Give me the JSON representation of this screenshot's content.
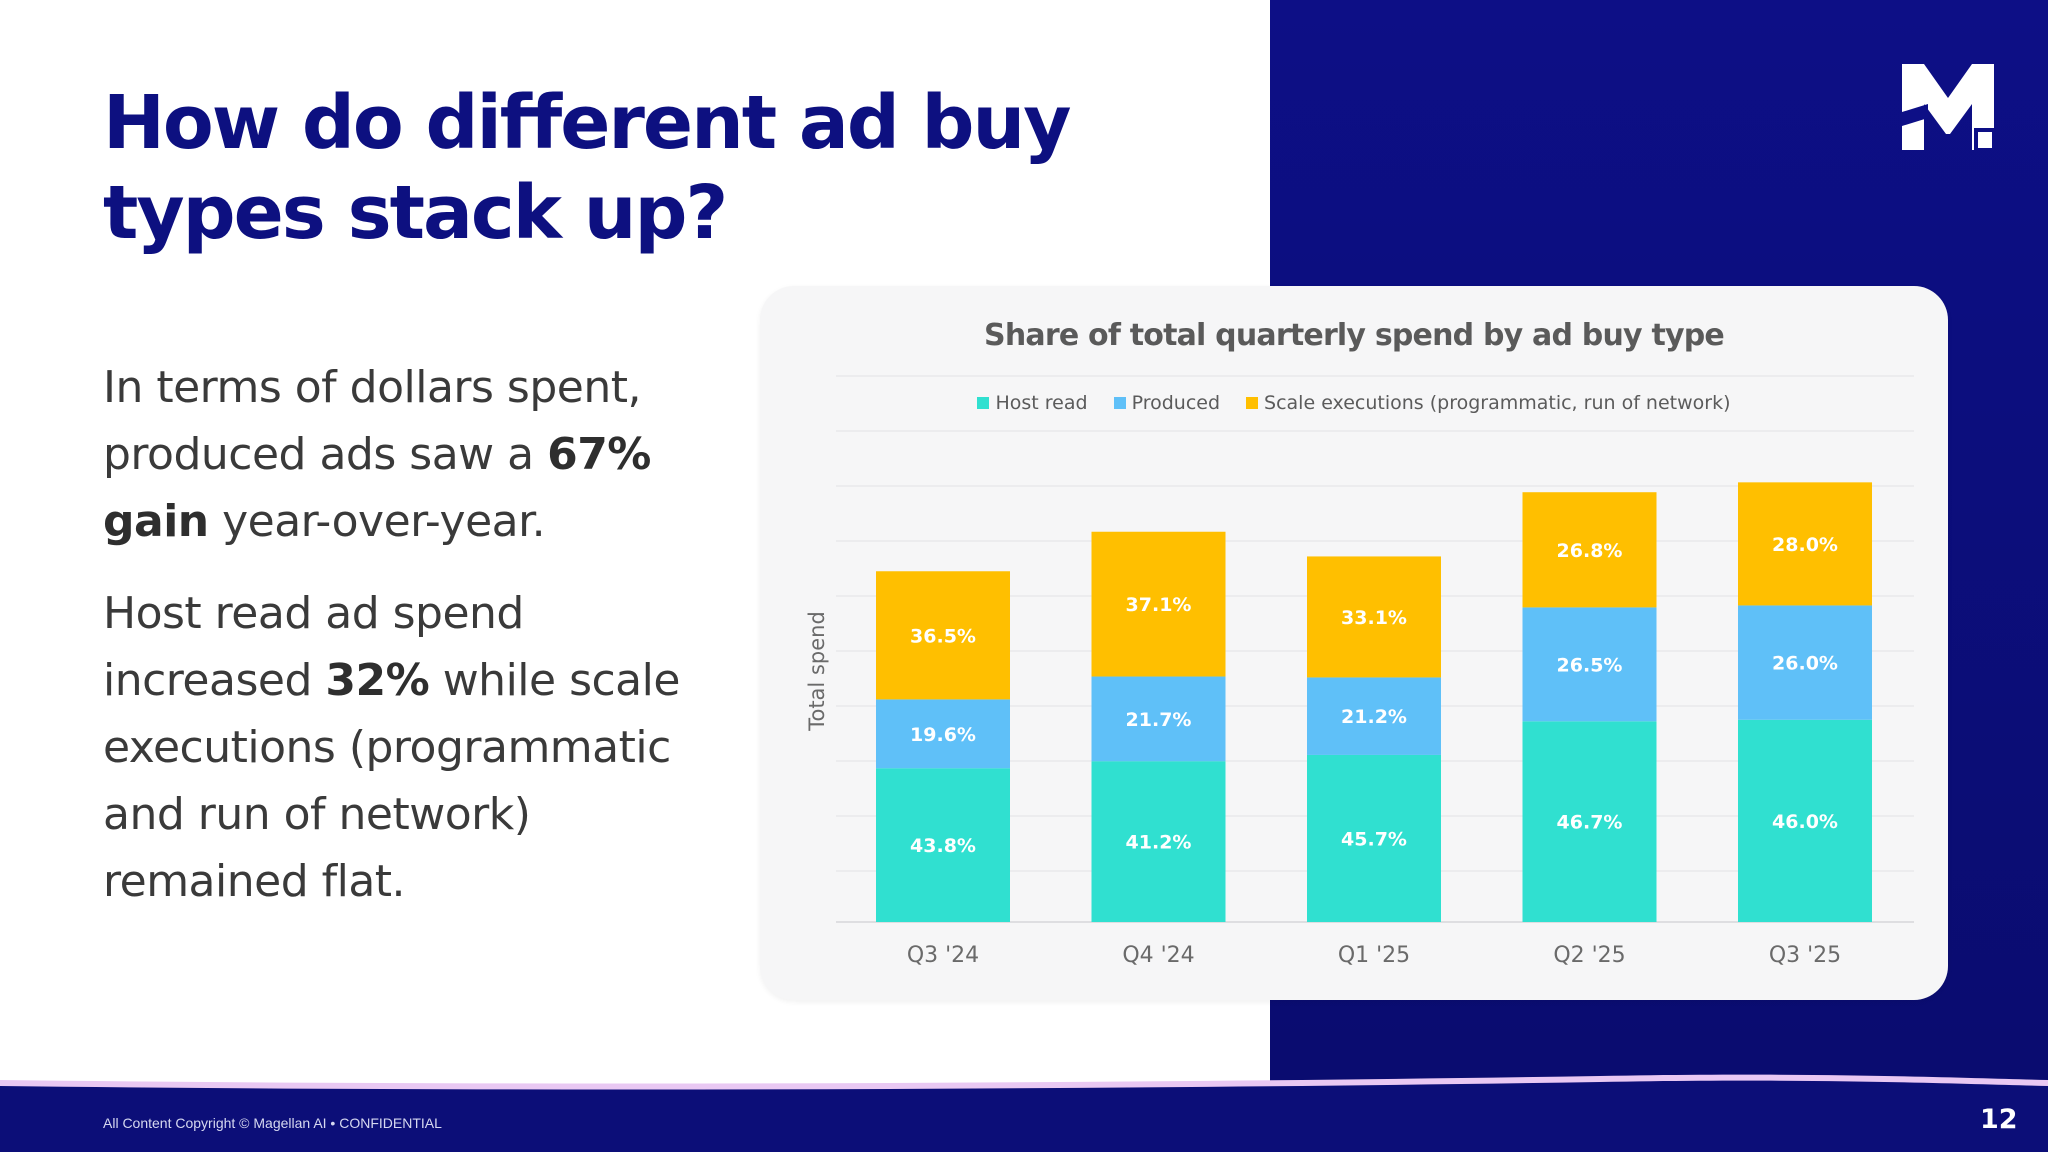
{
  "slide": {
    "title_line1": "How do different ad buy",
    "title_line2": "types stack up?",
    "p1": {
      "t1": "In terms of dollars spent,",
      "t2": "produced ads saw a ",
      "b1": "67%",
      "b2": "gain",
      "t3": " year-over-year."
    },
    "p2": {
      "t1": "Host read ad spend",
      "t2": "increased ",
      "b1": "32%",
      "t3": " while scale",
      "t4": "executions (programmatic",
      "t5": "and run of network)",
      "t6": "remained flat."
    },
    "copyright": "All Content Copyright © Magellan AI • CONFIDENTIAL",
    "page_number": "12",
    "logo": "magellan-m-logo"
  },
  "colors": {
    "brand_navy": "#0d1080",
    "host_read": "#30e0d0",
    "produced": "#5fc0f8",
    "scale": "#ffbf00"
  },
  "chart_data": {
    "type": "bar",
    "stacked": true,
    "title": "Share of total quarterly spend by ad buy type",
    "ylabel": "Total spend",
    "xlabel": "",
    "categories": [
      "Q3 '24",
      "Q4 '24",
      "Q1 '25",
      "Q2 '25",
      "Q3 '25"
    ],
    "bar_totals_relative": [
      0.71,
      0.79,
      0.74,
      0.87,
      0.89
    ],
    "series": [
      {
        "name": "Host read",
        "color": "#30e0d0",
        "values": [
          43.8,
          41.2,
          45.7,
          46.7,
          46.0
        ],
        "labels": [
          "43.8%",
          "41.2%",
          "45.7%",
          "46.7%",
          "46.0%"
        ]
      },
      {
        "name": "Produced",
        "color": "#5fc0f8",
        "values": [
          19.6,
          21.7,
          21.2,
          26.5,
          26.0
        ],
        "labels": [
          "19.6%",
          "21.7%",
          "21.2%",
          "26.5%",
          "26.0%"
        ]
      },
      {
        "name": "Scale executions (programmatic, run of network)",
        "color": "#ffbf00",
        "values": [
          36.5,
          37.1,
          33.1,
          26.8,
          28.0
        ],
        "labels": [
          "36.5%",
          "37.1%",
          "33.1%",
          "26.8%",
          "28.0%"
        ]
      }
    ],
    "grid": true,
    "legend_position": "top"
  }
}
